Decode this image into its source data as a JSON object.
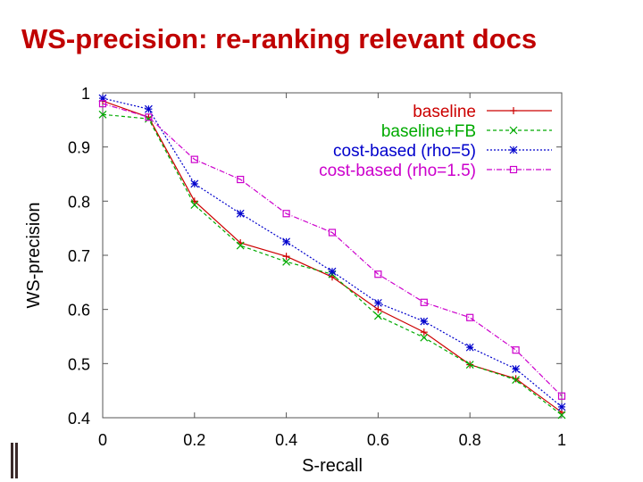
{
  "slide": {
    "title": "WS-precision: re-ranking relevant docs"
  },
  "chart_data": {
    "type": "line",
    "title": "",
    "xlabel": "S-recall",
    "ylabel": "WS-precision",
    "xlim": [
      0,
      1
    ],
    "ylim": [
      0.4,
      1
    ],
    "xticks": [
      0,
      0.2,
      0.4,
      0.6,
      0.8,
      1
    ],
    "xtick_labels": [
      "0",
      "0.2",
      "0.4",
      "0.6",
      "0.8",
      "1"
    ],
    "yticks": [
      0.4,
      0.5,
      0.6,
      0.7,
      0.8,
      0.9,
      1
    ],
    "ytick_labels": [
      "0.4",
      "0.5",
      "0.6",
      "0.7",
      "0.8",
      "0.9",
      "1"
    ],
    "x": [
      0,
      0.1,
      0.2,
      0.3,
      0.4,
      0.5,
      0.6,
      0.7,
      0.8,
      0.9,
      1
    ],
    "legend_position": "top-right",
    "series": [
      {
        "name": "baseline",
        "color": "#cc0000",
        "marker": "plus",
        "dash": "",
        "values": [
          0.985,
          0.955,
          0.8,
          0.723,
          0.698,
          0.66,
          0.6,
          0.558,
          0.498,
          0.472,
          0.41
        ]
      },
      {
        "name": "baseline+FB",
        "color": "#00aa00",
        "marker": "cross",
        "dash": "4,3",
        "values": [
          0.96,
          0.952,
          0.793,
          0.718,
          0.688,
          0.665,
          0.588,
          0.548,
          0.498,
          0.47,
          0.405
        ]
      },
      {
        "name": "cost-based (rho=5)",
        "color": "#0000cc",
        "marker": "star",
        "dash": "2,2",
        "values": [
          0.99,
          0.97,
          0.832,
          0.777,
          0.725,
          0.67,
          0.612,
          0.578,
          0.53,
          0.49,
          0.42
        ]
      },
      {
        "name": "cost-based (rho=1.5)",
        "color": "#cc00cc",
        "marker": "square",
        "dash": "6,2,1,2",
        "values": [
          0.98,
          0.955,
          0.877,
          0.84,
          0.777,
          0.742,
          0.665,
          0.613,
          0.585,
          0.525,
          0.44
        ]
      }
    ]
  }
}
